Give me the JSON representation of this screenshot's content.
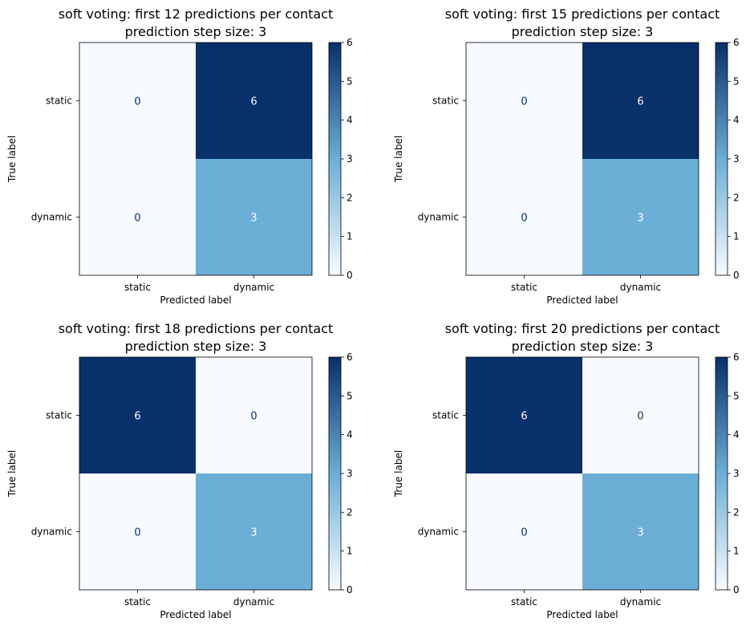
{
  "colors": {
    "cmap_low": "#f7fbff",
    "cmap_mid": "#6baed6",
    "cmap_high": "#08306b",
    "text_on_dark": "#ffffff",
    "text_on_light": "#08306b"
  },
  "chart_data": [
    {
      "type": "heatmap",
      "title": "soft voting: first 12 predictions per contact",
      "subtitle": "prediction step size: 3",
      "xlabel": "Predicted label",
      "ylabel": "True label",
      "x_categories": [
        "static",
        "dynamic"
      ],
      "y_categories": [
        "static",
        "dynamic"
      ],
      "values": [
        [
          0,
          6
        ],
        [
          0,
          3
        ]
      ],
      "colorbar": {
        "range": [
          0,
          6
        ],
        "ticks": [
          "0",
          "1",
          "2",
          "3",
          "4",
          "5",
          "6"
        ],
        "colormap": "Blues"
      }
    },
    {
      "type": "heatmap",
      "title": "soft voting: first 15 predictions per contact",
      "subtitle": "prediction step size: 3",
      "xlabel": "Predicted label",
      "ylabel": "True label",
      "x_categories": [
        "static",
        "dynamic"
      ],
      "y_categories": [
        "static",
        "dynamic"
      ],
      "values": [
        [
          0,
          6
        ],
        [
          0,
          3
        ]
      ],
      "colorbar": {
        "range": [
          0,
          6
        ],
        "ticks": [
          "0",
          "1",
          "2",
          "3",
          "4",
          "5",
          "6"
        ],
        "colormap": "Blues"
      }
    },
    {
      "type": "heatmap",
      "title": "soft voting: first 18 predictions per contact",
      "subtitle": "prediction step size: 3",
      "xlabel": "Predicted label",
      "ylabel": "True label",
      "x_categories": [
        "static",
        "dynamic"
      ],
      "y_categories": [
        "static",
        "dynamic"
      ],
      "values": [
        [
          6,
          0
        ],
        [
          0,
          3
        ]
      ],
      "colorbar": {
        "range": [
          0,
          6
        ],
        "ticks": [
          "0",
          "1",
          "2",
          "3",
          "4",
          "5",
          "6"
        ],
        "colormap": "Blues"
      }
    },
    {
      "type": "heatmap",
      "title": "soft voting: first 20 predictions per contact",
      "subtitle": "prediction step size: 3",
      "xlabel": "Predicted label",
      "ylabel": "True label",
      "x_categories": [
        "static",
        "dynamic"
      ],
      "y_categories": [
        "static",
        "dynamic"
      ],
      "values": [
        [
          6,
          0
        ],
        [
          0,
          3
        ]
      ],
      "colorbar": {
        "range": [
          0,
          6
        ],
        "ticks": [
          "0",
          "1",
          "2",
          "3",
          "4",
          "5",
          "6"
        ],
        "colormap": "Blues"
      }
    }
  ]
}
